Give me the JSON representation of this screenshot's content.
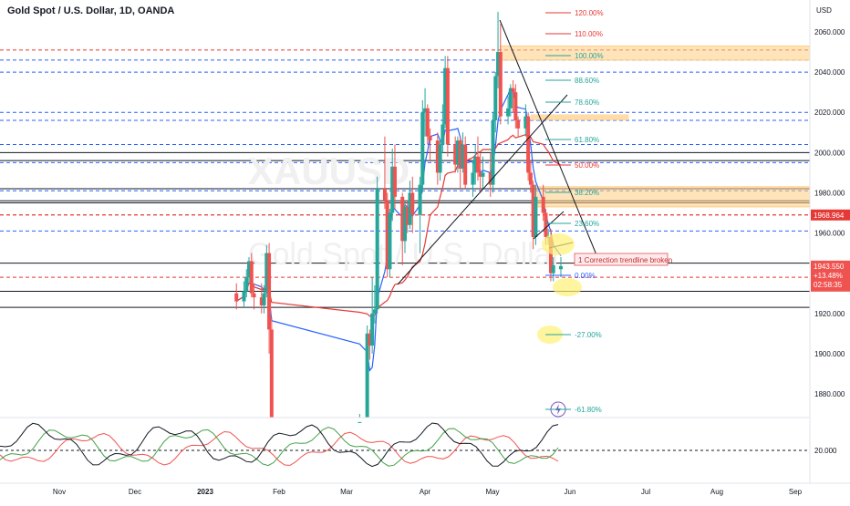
{
  "header": {
    "symbol_title": "Gold Spot / U.S. Dollar, 1D, OANDA",
    "currency": "USD"
  },
  "watermark": {
    "ticker": "XAUUSD",
    "name": "Gold Spot / U.S. Dollar"
  },
  "price_axis": {
    "ticks": [
      "2060.000",
      "2040.000",
      "2020.000",
      "2000.000",
      "1980.000",
      "1960.000",
      "1920.000",
      "1900.000",
      "1880.000"
    ],
    "tick_values": [
      2060,
      2040,
      2020,
      2000,
      1980,
      1960,
      1920,
      1900,
      1880
    ],
    "last_price_label": "1968.964",
    "current_price": "1943.550",
    "change_pct": "+13.48%",
    "countdown": "02:58:35"
  },
  "oscillator_axis": {
    "tick": "20.000"
  },
  "time_axis": {
    "labels": [
      "Nov",
      "Dec",
      "2023",
      "Feb",
      "Mar",
      "Apr",
      "May",
      "Jun",
      "Jul",
      "Aug",
      "Sep"
    ]
  },
  "annotations": {
    "correction_text": "1 Correction trendline broken",
    "fib_levels": [
      {
        "label": "120.00%",
        "color": "#e53935"
      },
      {
        "label": "110.00%",
        "color": "#e53935"
      },
      {
        "label": "100.00%",
        "color": "#26a69a"
      },
      {
        "label": "88.60%",
        "color": "#26a69a"
      },
      {
        "label": "78.60%",
        "color": "#26a69a"
      },
      {
        "label": "61.80%",
        "color": "#26a69a"
      },
      {
        "label": "50.00%",
        "color": "#e53935"
      },
      {
        "label": "38.20%",
        "color": "#26a69a"
      },
      {
        "label": "23.60%",
        "color": "#26a69a"
      },
      {
        "label": "0.00%",
        "color": "#2962ff"
      },
      {
        "label": "-27.00%",
        "color": "#26a69a"
      },
      {
        "label": "-61.80%",
        "color": "#26a69a"
      }
    ]
  },
  "colors": {
    "up": "#26a69a",
    "down": "#ef5350",
    "ma_fast": "#2962ff",
    "ma_slow": "#e53935",
    "fib_red": "#e53935",
    "fib_teal": "#26a69a",
    "fib_blue": "#2962ff",
    "zone": "#ffcc80",
    "highlight": "#fff176"
  },
  "chart_data": {
    "type": "candlestick",
    "y_range": [
      1865,
      2075
    ],
    "x_range": [
      "2022-10-18",
      "2023-09-05"
    ],
    "candles": [
      {
        "date": "2023-01-20",
        "o": 1930,
        "h": 1935,
        "l": 1922,
        "c": 1926
      },
      {
        "date": "2023-01-23",
        "o": 1926,
        "h": 1936,
        "l": 1923,
        "c": 1931
      },
      {
        "date": "2023-01-24",
        "o": 1931,
        "h": 1942,
        "l": 1928,
        "c": 1938
      },
      {
        "date": "2023-01-25",
        "o": 1938,
        "h": 1948,
        "l": 1935,
        "c": 1946
      },
      {
        "date": "2023-01-26",
        "o": 1946,
        "h": 1950,
        "l": 1928,
        "c": 1930
      },
      {
        "date": "2023-01-27",
        "o": 1930,
        "h": 1935,
        "l": 1922,
        "c": 1928
      },
      {
        "date": "2023-01-30",
        "o": 1928,
        "h": 1935,
        "l": 1920,
        "c": 1924
      },
      {
        "date": "2023-01-31",
        "o": 1924,
        "h": 1934,
        "l": 1920,
        "c": 1930
      },
      {
        "date": "2023-02-01",
        "o": 1930,
        "h": 1954,
        "l": 1928,
        "c": 1950
      },
      {
        "date": "2023-02-02",
        "o": 1950,
        "h": 1955,
        "l": 1900,
        "c": 1912
      },
      {
        "date": "2023-02-03",
        "o": 1912,
        "h": 1918,
        "l": 1863,
        "c": 1866
      },
      {
        "date": "2023-03-10",
        "o": 1832,
        "h": 1870,
        "l": 1830,
        "c": 1866
      },
      {
        "date": "2023-03-13",
        "o": 1866,
        "h": 1914,
        "l": 1862,
        "c": 1910
      },
      {
        "date": "2023-03-14",
        "o": 1910,
        "h": 1912,
        "l": 1897,
        "c": 1904
      },
      {
        "date": "2023-03-15",
        "o": 1904,
        "h": 1938,
        "l": 1900,
        "c": 1920
      },
      {
        "date": "2023-03-16",
        "o": 1920,
        "h": 1934,
        "l": 1915,
        "c": 1922
      },
      {
        "date": "2023-03-17",
        "o": 1922,
        "h": 1988,
        "l": 1920,
        "c": 1982
      },
      {
        "date": "2023-03-20",
        "o": 1982,
        "h": 2008,
        "l": 1972,
        "c": 1976
      },
      {
        "date": "2023-03-21",
        "o": 1976,
        "h": 1980,
        "l": 1938,
        "c": 1942
      },
      {
        "date": "2023-03-22",
        "o": 1942,
        "h": 1972,
        "l": 1938,
        "c": 1970
      },
      {
        "date": "2023-03-23",
        "o": 1970,
        "h": 2002,
        "l": 1966,
        "c": 1993
      },
      {
        "date": "2023-03-24",
        "o": 1993,
        "h": 2004,
        "l": 1972,
        "c": 1978
      },
      {
        "date": "2023-03-27",
        "o": 1978,
        "h": 1980,
        "l": 1944,
        "c": 1956
      },
      {
        "date": "2023-03-28",
        "o": 1956,
        "h": 1976,
        "l": 1950,
        "c": 1973
      },
      {
        "date": "2023-03-29",
        "o": 1973,
        "h": 1976,
        "l": 1960,
        "c": 1964
      },
      {
        "date": "2023-03-30",
        "o": 1964,
        "h": 1986,
        "l": 1962,
        "c": 1980
      },
      {
        "date": "2023-03-31",
        "o": 1980,
        "h": 1988,
        "l": 1960,
        "c": 1969
      },
      {
        "date": "2023-04-03",
        "o": 1969,
        "h": 1988,
        "l": 1950,
        "c": 1984
      },
      {
        "date": "2023-04-04",
        "o": 1984,
        "h": 2026,
        "l": 1980,
        "c": 2020
      },
      {
        "date": "2023-04-05",
        "o": 2020,
        "h": 2032,
        "l": 2008,
        "c": 2022
      },
      {
        "date": "2023-04-06",
        "o": 2022,
        "h": 2024,
        "l": 2004,
        "c": 2008
      },
      {
        "date": "2023-04-07",
        "o": 2008,
        "h": 2012,
        "l": 1996,
        "c": 2006
      },
      {
        "date": "2023-04-10",
        "o": 2006,
        "h": 2010,
        "l": 1984,
        "c": 1990
      },
      {
        "date": "2023-04-11",
        "o": 1990,
        "h": 2006,
        "l": 1986,
        "c": 2004
      },
      {
        "date": "2023-04-12",
        "o": 2004,
        "h": 2024,
        "l": 2000,
        "c": 2014
      },
      {
        "date": "2023-04-13",
        "o": 2014,
        "h": 2048,
        "l": 2012,
        "c": 2042
      },
      {
        "date": "2023-04-14",
        "o": 2042,
        "h": 2048,
        "l": 1998,
        "c": 2004
      },
      {
        "date": "2023-04-17",
        "o": 2004,
        "h": 2008,
        "l": 1990,
        "c": 1994
      },
      {
        "date": "2023-04-18",
        "o": 1994,
        "h": 2008,
        "l": 1990,
        "c": 2006
      },
      {
        "date": "2023-04-19",
        "o": 2006,
        "h": 2008,
        "l": 1982,
        "c": 1992
      },
      {
        "date": "2023-04-20",
        "o": 1992,
        "h": 2010,
        "l": 1990,
        "c": 2004
      },
      {
        "date": "2023-04-21",
        "o": 2004,
        "h": 2008,
        "l": 1982,
        "c": 1984
      },
      {
        "date": "2023-04-24",
        "o": 1984,
        "h": 1996,
        "l": 1978,
        "c": 1990
      },
      {
        "date": "2023-04-25",
        "o": 1990,
        "h": 2004,
        "l": 1984,
        "c": 1998
      },
      {
        "date": "2023-04-26",
        "o": 1998,
        "h": 2008,
        "l": 1986,
        "c": 1990
      },
      {
        "date": "2023-04-27",
        "o": 1990,
        "h": 2000,
        "l": 1980,
        "c": 1988
      },
      {
        "date": "2023-04-28",
        "o": 1988,
        "h": 1998,
        "l": 1982,
        "c": 1990
      },
      {
        "date": "2023-05-01",
        "o": 1990,
        "h": 2000,
        "l": 1978,
        "c": 1984
      },
      {
        "date": "2023-05-02",
        "o": 1984,
        "h": 2020,
        "l": 1980,
        "c": 2016
      },
      {
        "date": "2023-05-03",
        "o": 2016,
        "h": 2040,
        "l": 2010,
        "c": 2038
      },
      {
        "date": "2023-05-04",
        "o": 2038,
        "h": 2070,
        "l": 2032,
        "c": 2050
      },
      {
        "date": "2023-05-05",
        "o": 2050,
        "h": 2064,
        "l": 2014,
        "c": 2018
      },
      {
        "date": "2023-05-08",
        "o": 2018,
        "h": 2028,
        "l": 2014,
        "c": 2022
      },
      {
        "date": "2023-05-09",
        "o": 2022,
        "h": 2034,
        "l": 2018,
        "c": 2032
      },
      {
        "date": "2023-05-10",
        "o": 2032,
        "h": 2036,
        "l": 2020,
        "c": 2030
      },
      {
        "date": "2023-05-11",
        "o": 2030,
        "h": 2034,
        "l": 2012,
        "c": 2016
      },
      {
        "date": "2023-05-12",
        "o": 2016,
        "h": 2018,
        "l": 2008,
        "c": 2012
      },
      {
        "date": "2023-05-15",
        "o": 2012,
        "h": 2024,
        "l": 2008,
        "c": 2018
      },
      {
        "date": "2023-05-16",
        "o": 2018,
        "h": 2020,
        "l": 1986,
        "c": 1990
      },
      {
        "date": "2023-05-17",
        "o": 1990,
        "h": 1996,
        "l": 1980,
        "c": 1984
      },
      {
        "date": "2023-05-18",
        "o": 1984,
        "h": 1986,
        "l": 1952,
        "c": 1958
      },
      {
        "date": "2023-05-19",
        "o": 1958,
        "h": 1984,
        "l": 1954,
        "c": 1978
      },
      {
        "date": "2023-05-22",
        "o": 1978,
        "h": 1984,
        "l": 1966,
        "c": 1970
      },
      {
        "date": "2023-05-23",
        "o": 1970,
        "h": 1972,
        "l": 1954,
        "c": 1958
      },
      {
        "date": "2023-05-24",
        "o": 1958,
        "h": 1962,
        "l": 1954,
        "c": 1958
      },
      {
        "date": "2023-05-25",
        "o": 1958,
        "h": 1962,
        "l": 1936,
        "c": 1940
      },
      {
        "date": "2023-05-26",
        "o": 1940,
        "h": 1948,
        "l": 1936,
        "c": 1944
      },
      {
        "date": "2023-05-29",
        "o": 1942,
        "h": 1948,
        "l": 1938,
        "c": 1943.55
      }
    ],
    "horizontal_levels": [
      2051,
      2046,
      2040,
      2020,
      2016,
      2004,
      2000,
      1996,
      1995,
      1982,
      1981,
      1976,
      1975,
      1969,
      1968.964,
      1961,
      1945,
      1938,
      1931,
      1923
    ]
  }
}
